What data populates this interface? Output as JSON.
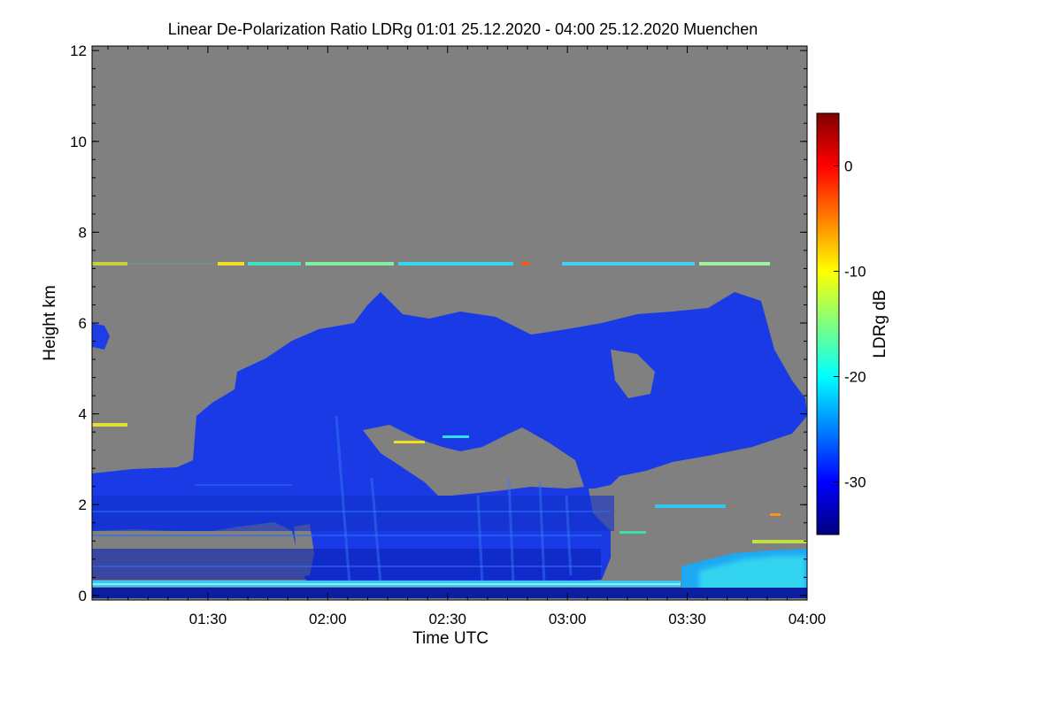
{
  "chart_data": {
    "type": "heatmap",
    "title": "Linear De-Polarization Ratio LDRg   01:01 25.12.2020 - 04:00 25.12.2020 Muenchen",
    "xlabel": "Time UTC",
    "ylabel": "Height km",
    "x_range_minutes": [
      61,
      240
    ],
    "x_ticks": [
      {
        "minutes": 90,
        "label": "01:30"
      },
      {
        "minutes": 120,
        "label": "02:00"
      },
      {
        "minutes": 150,
        "label": "02:30"
      },
      {
        "minutes": 180,
        "label": "03:00"
      },
      {
        "minutes": 210,
        "label": "03:30"
      },
      {
        "minutes": 240,
        "label": "04:00"
      }
    ],
    "ylim": [
      -0.1,
      12.1
    ],
    "y_ticks": [
      0,
      2,
      4,
      6,
      8,
      10,
      12
    ],
    "no_data_color": "#808080",
    "colorbar": {
      "label": "LDRg dB",
      "range": [
        -35,
        5
      ],
      "ticks": [
        0,
        -10,
        -20,
        -30
      ],
      "colormap": "jet"
    },
    "features": [
      {
        "layer": "thin high-depol layer",
        "height_km": 7.3,
        "time_minutes": [
          61,
          235
        ],
        "ldr_db": -18
      },
      {
        "layer": "cloud body",
        "height_km": [
          1.0,
          6.5
        ],
        "time_minutes": [
          61,
          240
        ],
        "ldr_db": -30
      },
      {
        "layer": "surface layer",
        "height_km": [
          0.0,
          0.3
        ],
        "time_minutes": [
          61,
          240
        ],
        "ldr_db": -25
      }
    ]
  }
}
